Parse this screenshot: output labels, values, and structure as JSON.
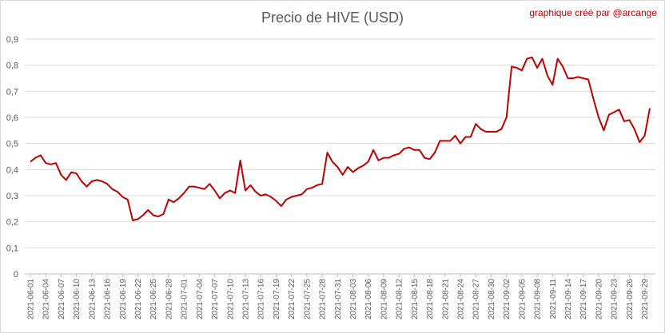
{
  "header": {
    "credit": "graphique créé par @arcange"
  },
  "chart_data": {
    "type": "line",
    "title": "Precio de HIVE (USD)",
    "xlabel": "",
    "ylabel": "",
    "ylim": [
      0,
      0.9
    ],
    "y_ticks": [
      "0",
      "0,1",
      "0,2",
      "0,3",
      "0,4",
      "0,5",
      "0,6",
      "0,7",
      "0,8",
      "0,9"
    ],
    "x_tick_labels": [
      "2021-06-01",
      "2021-06-04",
      "2021-06-07",
      "2021-06-10",
      "2021-06-13",
      "2021-06-16",
      "2021-06-19",
      "2021-06-22",
      "2021-06-25",
      "2021-06-28",
      "2021-07-01",
      "2021-07-04",
      "2021-07-07",
      "2021-07-10",
      "2021-07-13",
      "2021-07-16",
      "2021-07-19",
      "2021-07-22",
      "2021-07-25",
      "2021-07-28",
      "2021-07-31",
      "2021-08-03",
      "2021-08-06",
      "2021-08-09",
      "2021-08-12",
      "2021-08-15",
      "2021-08-18",
      "2021-08-21",
      "2021-08-24",
      "2021-08-27",
      "2021-08-30",
      "2021-09-02",
      "2021-09-05",
      "2021-09-08",
      "2021-09-11",
      "2021-09-14",
      "2021-09-17",
      "2021-09-20",
      "2021-09-23",
      "2021-09-26",
      "2021-09-29"
    ],
    "grid": "horizontal",
    "line_color": "#c00000",
    "series": [
      {
        "values": [
          0.43,
          0.445,
          0.455,
          0.425,
          0.42,
          0.425,
          0.38,
          0.36,
          0.39,
          0.385,
          0.355,
          0.335,
          0.355,
          0.36,
          0.355,
          0.345,
          0.325,
          0.315,
          0.295,
          0.285,
          0.205,
          0.21,
          0.225,
          0.245,
          0.225,
          0.22,
          0.23,
          0.285,
          0.275,
          0.29,
          0.31,
          0.335,
          0.335,
          0.33,
          0.325,
          0.345,
          0.32,
          0.29,
          0.31,
          0.32,
          0.31,
          0.435,
          0.32,
          0.34,
          0.315,
          0.3,
          0.305,
          0.295,
          0.28,
          0.26,
          0.285,
          0.295,
          0.3,
          0.305,
          0.325,
          0.33,
          0.34,
          0.345,
          0.465,
          0.43,
          0.41,
          0.38,
          0.41,
          0.39,
          0.405,
          0.415,
          0.43,
          0.475,
          0.435,
          0.445,
          0.445,
          0.455,
          0.46,
          0.48,
          0.485,
          0.475,
          0.475,
          0.445,
          0.44,
          0.465,
          0.51,
          0.51,
          0.51,
          0.53,
          0.5,
          0.525,
          0.525,
          0.575,
          0.555,
          0.545,
          0.545,
          0.545,
          0.555,
          0.6,
          0.795,
          0.79,
          0.78,
          0.825,
          0.83,
          0.79,
          0.825,
          0.76,
          0.725,
          0.825,
          0.795,
          0.75,
          0.75,
          0.755,
          0.75,
          0.745,
          0.67,
          0.6,
          0.55,
          0.61,
          0.62,
          0.63,
          0.585,
          0.59,
          0.555,
          0.505,
          0.53,
          0.635
        ]
      }
    ]
  }
}
